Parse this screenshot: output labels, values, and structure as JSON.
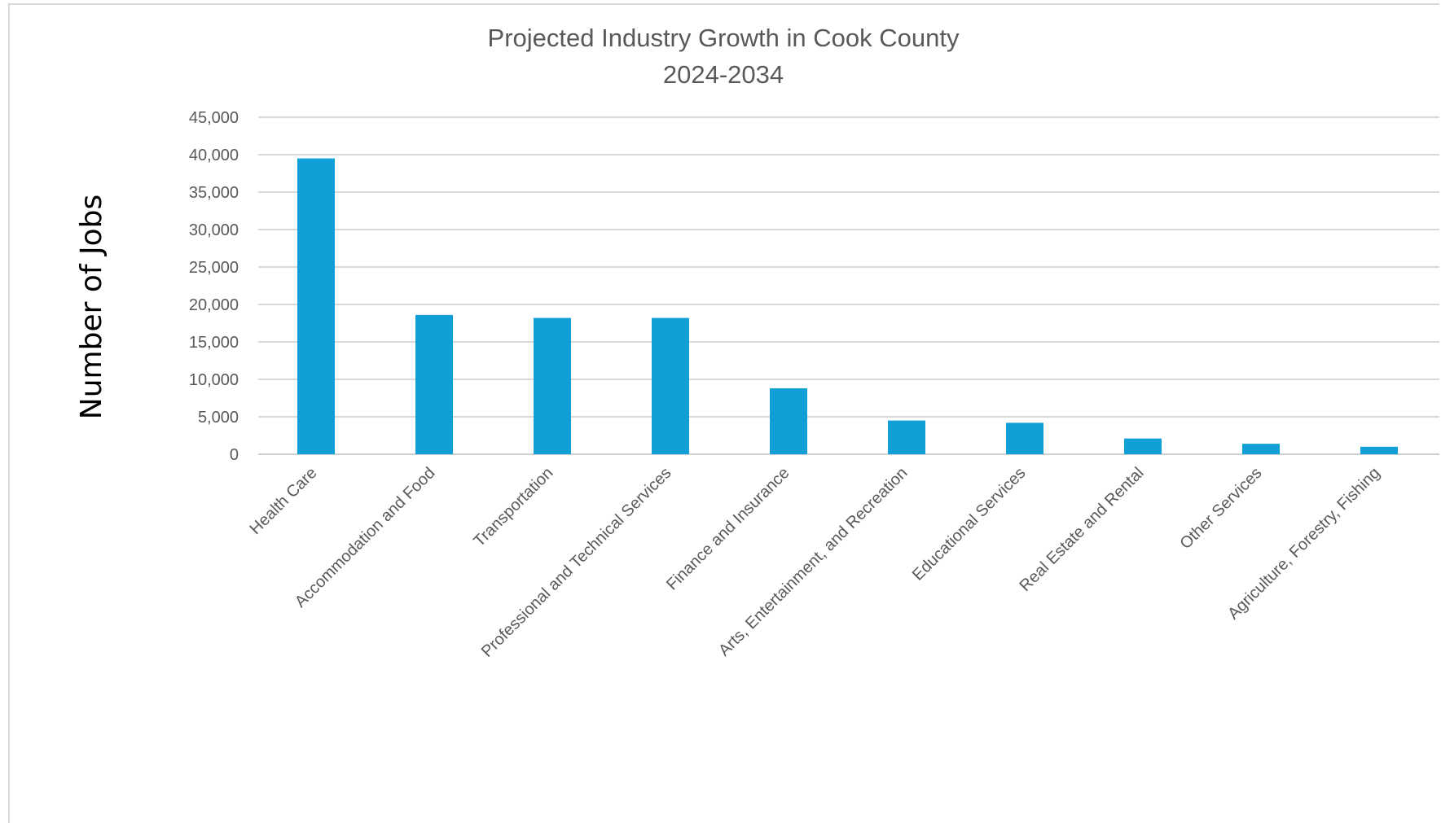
{
  "chart_data": {
    "type": "bar",
    "title": [
      "Projected Industry Growth in Cook County",
      "2024-2034"
    ],
    "xlabel": "",
    "ylabel": "Number of Jobs",
    "ylim": [
      0,
      45000
    ],
    "yticks": [
      0,
      5000,
      10000,
      15000,
      20000,
      25000,
      30000,
      35000,
      40000,
      45000
    ],
    "ytick_labels": [
      "0",
      "5,000",
      "10,000",
      "15,000",
      "20,000",
      "25,000",
      "30,000",
      "35,000",
      "40,000",
      "45,000"
    ],
    "grid": true,
    "legend": "none",
    "bar_color": "#109fd7",
    "categories": [
      "Health Care",
      "Accommodation and Food",
      "Transportation",
      "Professional and Technical Services",
      "Finance and Insurance",
      "Arts, Entertainment, and Recreation",
      "Educational Services",
      "Real Estate and Rental",
      "Other Services",
      "Agriculture, Forestry, Fishing"
    ],
    "values": [
      39500,
      18600,
      18200,
      18200,
      8800,
      4500,
      4200,
      2100,
      1400,
      1000
    ]
  }
}
